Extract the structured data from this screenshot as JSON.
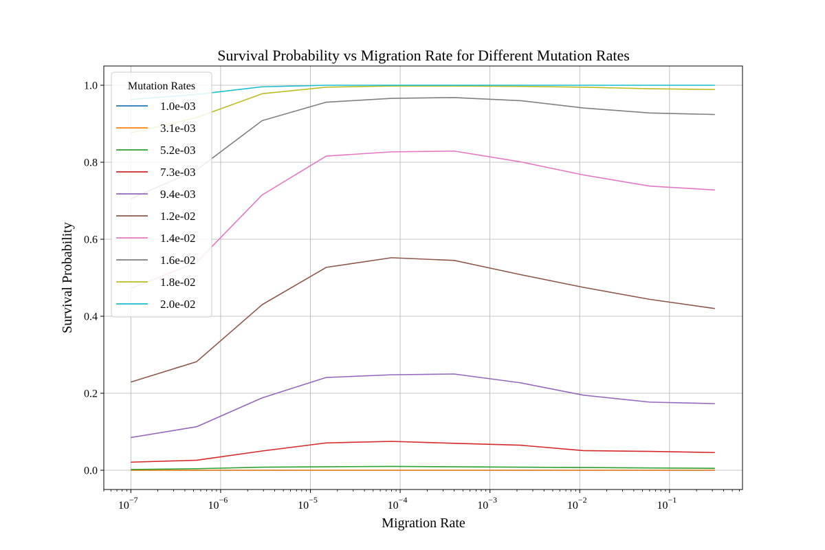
{
  "chart_data": {
    "type": "line",
    "title": "Survival Probability vs Migration Rate for Different Mutation Rates",
    "xlabel": "Migration Rate",
    "ylabel": "Survival Probability",
    "xscale": "log",
    "xlim": [
      5e-08,
      0.65
    ],
    "ylim": [
      -0.05,
      1.05
    ],
    "grid": true,
    "legend": {
      "title": "Mutation Rates",
      "placement": "upper-left"
    },
    "x": [
      1e-07,
      5.4e-07,
      2.9e-06,
      1.5e-05,
      8e-05,
      0.0004,
      0.0022,
      0.011,
      0.06,
      0.32
    ],
    "xticks": [
      {
        "exp": -7,
        "text": "10",
        "sup": "−7"
      },
      {
        "exp": -6,
        "text": "10",
        "sup": "−6"
      },
      {
        "exp": -5,
        "text": "10",
        "sup": "−5"
      },
      {
        "exp": -4,
        "text": "10",
        "sup": "−4"
      },
      {
        "exp": -3,
        "text": "10",
        "sup": "−3"
      },
      {
        "exp": -2,
        "text": "10",
        "sup": "−2"
      },
      {
        "exp": -1,
        "text": "10",
        "sup": "−1"
      }
    ],
    "yticks": [
      {
        "value": 0.0,
        "label": "0.0"
      },
      {
        "value": 0.2,
        "label": "0.2"
      },
      {
        "value": 0.4,
        "label": "0.4"
      },
      {
        "value": 0.6,
        "label": "0.6"
      },
      {
        "value": 0.8,
        "label": "0.8"
      },
      {
        "value": 1.0,
        "label": "1.0"
      }
    ],
    "series": [
      {
        "name": "1.0e-03",
        "color": "#1f77b4",
        "values": [
          0.0,
          0.0,
          0.0,
          0.0,
          0.0,
          0.0,
          0.0,
          0.0,
          0.0,
          0.0
        ]
      },
      {
        "name": "3.1e-03",
        "color": "#ff7f0e",
        "values": [
          0.0,
          0.0,
          0.0,
          0.0,
          0.0,
          0.0,
          0.0,
          0.0,
          0.0,
          0.0
        ]
      },
      {
        "name": "5.2e-03",
        "color": "#2ca02c",
        "values": [
          0.002,
          0.004,
          0.008,
          0.009,
          0.01,
          0.009,
          0.008,
          0.007,
          0.006,
          0.005
        ]
      },
      {
        "name": "7.3e-03",
        "color": "#d62728",
        "values": [
          0.021,
          0.026,
          0.05,
          0.071,
          0.075,
          0.07,
          0.065,
          0.051,
          0.049,
          0.046
        ]
      },
      {
        "name": "9.4e-03",
        "color": "#9467bd",
        "values": [
          0.085,
          0.113,
          0.188,
          0.241,
          0.248,
          0.25,
          0.227,
          0.195,
          0.177,
          0.173
        ]
      },
      {
        "name": "1.2e-02",
        "color": "#8c564b",
        "values": [
          0.229,
          0.282,
          0.43,
          0.527,
          0.552,
          0.545,
          0.508,
          0.475,
          0.444,
          0.42
        ]
      },
      {
        "name": "1.4e-02",
        "color": "#e377c2",
        "values": [
          0.472,
          0.54,
          0.715,
          0.816,
          0.827,
          0.829,
          0.801,
          0.767,
          0.738,
          0.728
        ]
      },
      {
        "name": "1.6e-02",
        "color": "#7f7f7f",
        "values": [
          0.705,
          0.78,
          0.908,
          0.956,
          0.966,
          0.968,
          0.96,
          0.941,
          0.928,
          0.924
        ]
      },
      {
        "name": "1.8e-02",
        "color": "#bcbd22",
        "values": [
          0.876,
          0.916,
          0.978,
          0.995,
          0.998,
          0.998,
          0.997,
          0.995,
          0.991,
          0.989
        ]
      },
      {
        "name": "2.0e-02",
        "color": "#17becf",
        "values": [
          0.963,
          0.976,
          0.996,
          1.0,
          1.0,
          1.0,
          1.0,
          1.0,
          1.0,
          1.0
        ]
      }
    ]
  }
}
